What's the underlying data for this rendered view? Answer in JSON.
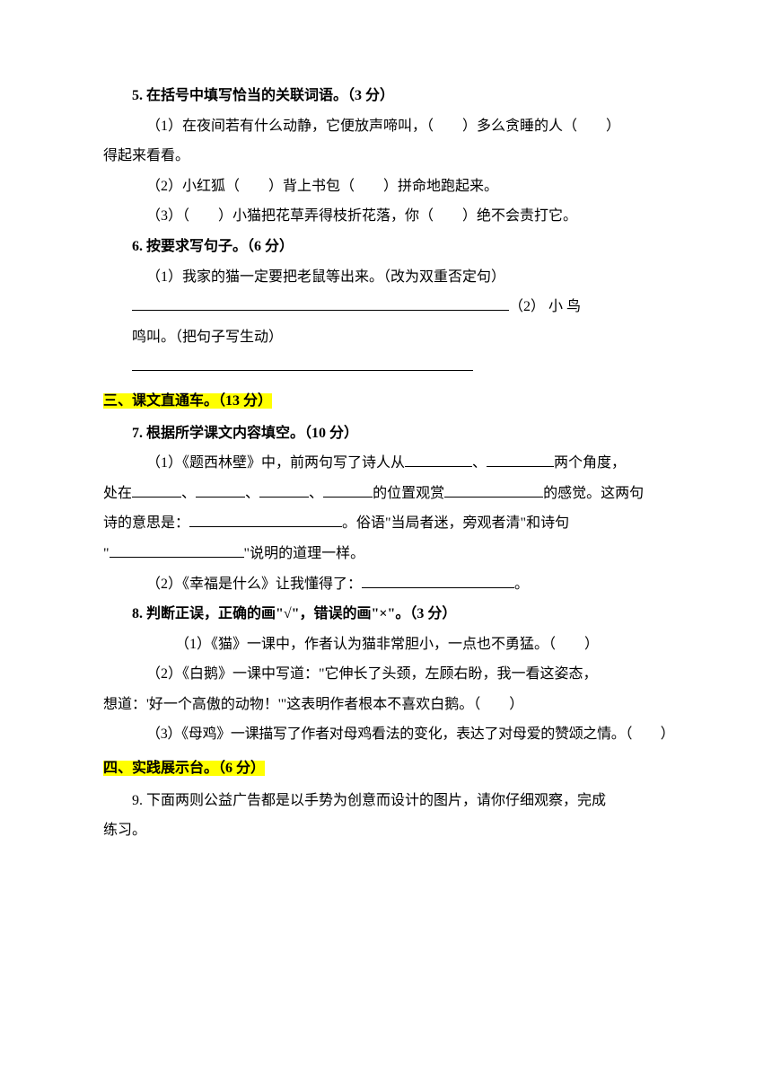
{
  "colors": {
    "highlight": "#ffff00",
    "text": "#000000",
    "background": "#ffffff",
    "underline": "#000000"
  },
  "typography": {
    "body_fontsize": 16,
    "body_family": "SimSun",
    "line_height": 2.1,
    "bold_weight": "bold"
  },
  "q5": {
    "title": "5. 在括号中填写恰当的关联词语。（3 分）",
    "item1a": "（1）在夜间若有什么动静，它便放声啼叫，（　　）多么贪睡的人（　　）",
    "item1b": "得起来看看。",
    "item2": "（2）小红狐（　　）背上书包（　　）拼命地跑起来。",
    "item3": "（3）（　　）小猫把花草弄得枝折花落，你（　　）绝不会责打它。"
  },
  "q6": {
    "title": "6. 按要求写句子。（6 分）",
    "item1": "（1）我家的猫一定要把老鼠等出来。（改为双重否定句）",
    "item2a": "（2） 小 鸟",
    "item2b": "鸣叫。（把句子写生动）"
  },
  "section3": {
    "title": "三、课文直通车。（13 分）"
  },
  "q7": {
    "title": "7. 根据所学课文内容填空。（10 分）",
    "item1a": "（1）《题西林壁》中，前两句写了诗人从",
    "item1a_mid": "、",
    "item1a_end": "两个角度，",
    "item1b_start": "处在",
    "item1b_sep": "、",
    "item1b_mid": "的位置观赏",
    "item1b_end": "的感觉。这两句",
    "item1c_start": "诗的意思是：",
    "item1c_end": "。俗语\"当局者迷，旁观者清\"和诗句",
    "item1d_start": "\"",
    "item1d_end": "\"说明的道理一样。",
    "item2_start": "（2）《幸福是什么》让我懂得了：",
    "item2_end": "。"
  },
  "q8": {
    "title": "8. 判断正误，正确的画\"√\"，错误的画\"×\"。（3 分）",
    "item1": "（1）《猫》一课中，作者认为猫非常胆小，一点也不勇猛。（　　）",
    "item2a": "（2）《白鹅》一课中写道：\"它伸长了头颈，左顾右盼，我一看这姿态，",
    "item2b": "想道：'好一个高傲的动物！'\"这表明作者根本不喜欢白鹅。（　　）",
    "item3": "（3）《母鸡》一课描写了作者对母鸡看法的变化，表达了对母爱的赞颂之情。（　　）"
  },
  "section4": {
    "title": "四、实践展示台。（6 分）"
  },
  "q9": {
    "line1": "9. 下面两则公益广告都是以手势为创意而设计的图片，请你仔细观察，完成",
    "line2": "练习。"
  }
}
